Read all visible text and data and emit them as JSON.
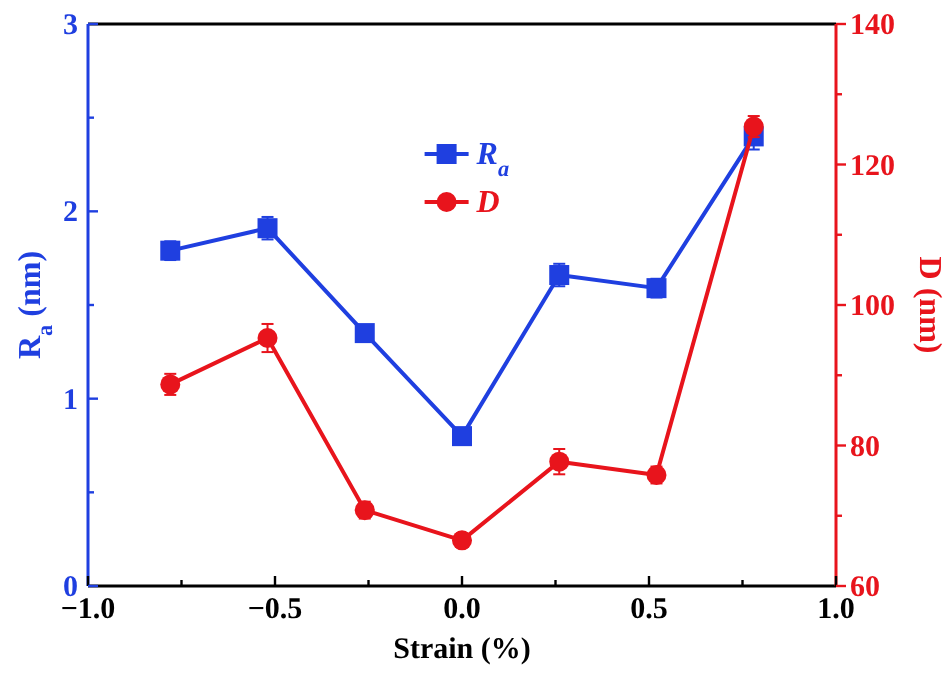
{
  "chart_data": {
    "type": "line",
    "xlabel": "Strain (%)",
    "ylabel": "R$_{a}$ (nm)",
    "y2label": "D (nm)",
    "xlim": [
      -1,
      1
    ],
    "xticks": [
      {
        "value": -1,
        "label": "−1.0"
      },
      {
        "value": -0.75,
        "label": null
      },
      {
        "value": -0.5,
        "label": "−0.5"
      },
      {
        "value": -0.25,
        "label": null
      },
      {
        "value": 0,
        "label": "0.0"
      },
      {
        "value": 0.25,
        "label": null
      },
      0.5,
      {
        "value": 0.75,
        "label": null
      },
      {
        "value": 1,
        "label": "1.0"
      }
    ],
    "ylim": [
      0,
      3
    ],
    "yticks": [
      0,
      {
        "value": 0.5,
        "label": null
      },
      1,
      {
        "value": 1.5,
        "label": null
      },
      2,
      {
        "value": 2.5,
        "label": null
      },
      3
    ],
    "y2lim": [
      60,
      140
    ],
    "y2ticks": [
      60,
      {
        "value": 70,
        "label": null
      },
      80,
      {
        "value": 90,
        "label": null
      },
      100,
      {
        "value": 110,
        "label": null
      },
      120,
      {
        "value": 130,
        "label": null
      },
      140
    ],
    "x": [
      -0.78,
      -0.52,
      -0.26,
      0,
      0.26,
      0.52,
      0.78
    ],
    "legend": "top",
    "grid": false,
    "series": [
      {
        "name": "R$_{a}$",
        "color": "#1f3fe0",
        "marker": "square",
        "values": [
          1.79,
          1.91,
          1.35,
          0.8,
          1.66,
          1.59,
          2.4
        ],
        "errors": [
          0.05,
          0.06,
          0.04,
          0.03,
          0.06,
          0.05,
          0.07
        ]
      },
      {
        "name": "D",
        "color": "#e8141c",
        "marker": "circle",
        "axis": "y2",
        "values": [
          88.7,
          95.3,
          70.8,
          66.5,
          77.7,
          75.8,
          125.4
        ],
        "errors": [
          1.5,
          2,
          1.2,
          1,
          1.8,
          1.2,
          1.5
        ]
      }
    ]
  }
}
